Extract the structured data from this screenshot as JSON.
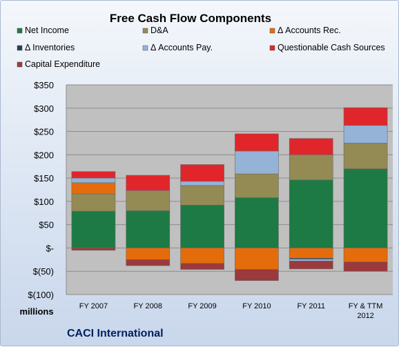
{
  "chart_data": {
    "type": "bar",
    "stacked": true,
    "title": "Free Cash Flow Components",
    "ylabel": "millions",
    "footer": "CACI International",
    "ylim": [
      -100,
      350
    ],
    "y_ticks": [
      350,
      300,
      250,
      200,
      150,
      100,
      50,
      0,
      -50,
      -100
    ],
    "y_tick_labels": [
      "$350",
      "$300",
      "$250",
      "$200",
      "$150",
      "$100",
      "$50",
      "$-",
      "$(50)",
      "$(100)"
    ],
    "categories": [
      "FY 2007",
      "FY 2008",
      "FY 2009",
      "FY 2010",
      "FY 2011",
      "FY & TTM 2012"
    ],
    "category_lines": [
      [
        "FY 2007"
      ],
      [
        "FY 2008"
      ],
      [
        "FY 2009"
      ],
      [
        "FY 2010"
      ],
      [
        "FY 2011"
      ],
      [
        "FY & TTM",
        "2012"
      ]
    ],
    "grid": true,
    "legend_position": "top",
    "series": [
      {
        "name": "Net Income",
        "color": "#1e7a44",
        "values": [
          79,
          80,
          92,
          108,
          146,
          170
        ]
      },
      {
        "name": "D&A",
        "color": "#948a54",
        "values": [
          37,
          41,
          42,
          51,
          54,
          55
        ]
      },
      {
        "name": "Δ Accounts Rec.",
        "color": "#e46c0a",
        "values": [
          24,
          -25,
          -33,
          -46,
          -22,
          -30
        ]
      },
      {
        "name": "Δ Inventories",
        "color": "#1f3f5f",
        "values": [
          0,
          0,
          0,
          0,
          -2,
          0
        ]
      },
      {
        "name": "Δ Accounts Pay.",
        "color": "#95b3d7",
        "values": [
          10,
          2,
          9,
          49,
          -4,
          38
        ]
      },
      {
        "name": "Questionable Cash Sources",
        "color": "#e0262a",
        "values": [
          14,
          33,
          36,
          37,
          35,
          38
        ]
      },
      {
        "name": "Capital Expenditure",
        "color": "#9a3a3c",
        "values": [
          -5,
          -13,
          -13,
          -24,
          -17,
          -20
        ]
      }
    ]
  }
}
